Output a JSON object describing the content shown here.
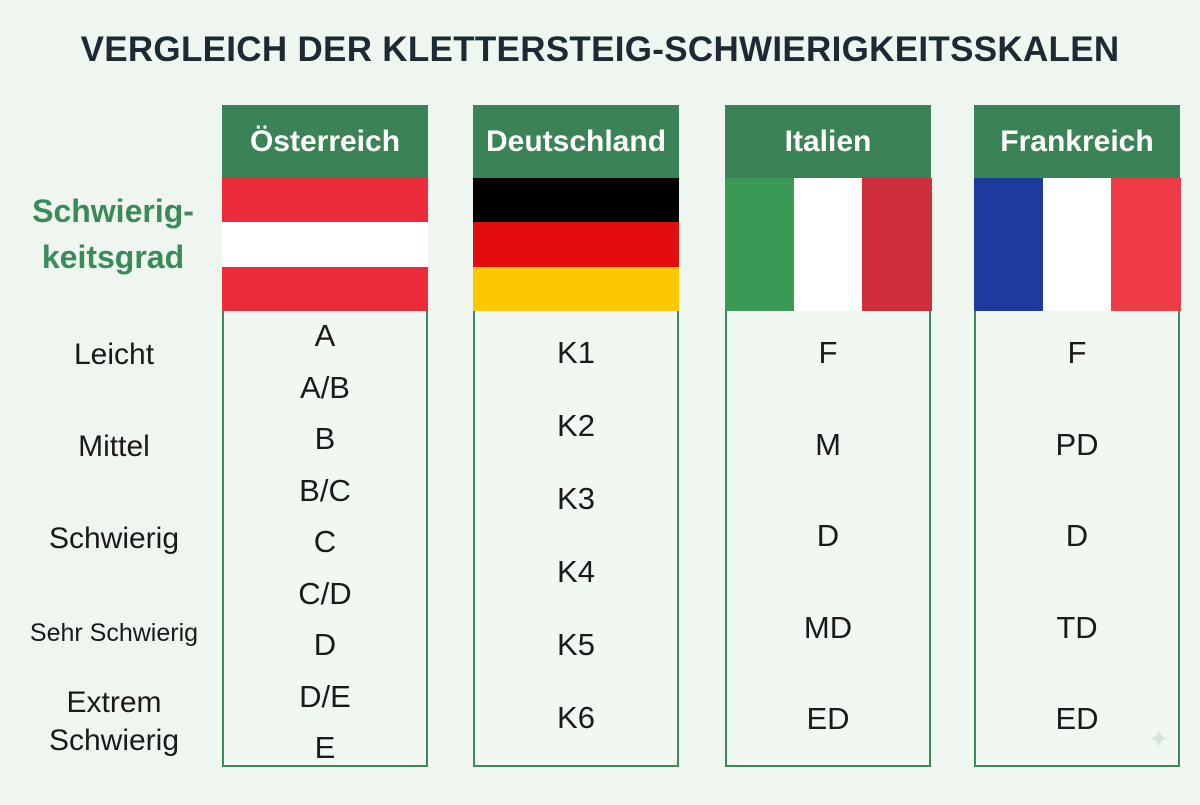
{
  "title": "VERGLEICH DER KLETTERSTEIG-SCHWIERIGKEITSSKALEN",
  "row_header": {
    "line1": "Schwierig-",
    "line2": "keitsgrad"
  },
  "levels": [
    {
      "line1": "Leicht",
      "line2": ""
    },
    {
      "line1": "Mittel",
      "line2": ""
    },
    {
      "line1": "Schwierig",
      "line2": ""
    },
    {
      "line1": "Sehr Schwierig",
      "line2": ""
    },
    {
      "line1": "Extrem",
      "line2": "Schwierig"
    }
  ],
  "columns": [
    {
      "name": "Österreich",
      "flag": {
        "orientation": "horizontal",
        "colors": [
          "#ec2b3a",
          "#ffffff",
          "#ec2b3a"
        ]
      },
      "grades": [
        "A",
        "A/B",
        "B",
        "B/C",
        "C",
        "C/D",
        "D",
        "D/E",
        "E"
      ]
    },
    {
      "name": "Deutschland",
      "flag": {
        "orientation": "horizontal",
        "colors": [
          "#000000",
          "#e30d10",
          "#fcc800"
        ]
      },
      "grades": [
        "K1",
        "K2",
        "K3",
        "K4",
        "K5",
        "K6"
      ]
    },
    {
      "name": "Italien",
      "flag": {
        "orientation": "vertical",
        "colors": [
          "#3a9a55",
          "#ffffff",
          "#cf2f3a"
        ]
      },
      "grades": [
        "F",
        "M",
        "D",
        "MD",
        "ED"
      ]
    },
    {
      "name": "Frankreich",
      "flag": {
        "orientation": "vertical",
        "colors": [
          "#1e3a9e",
          "#ffffff",
          "#ee3a45"
        ]
      },
      "grades": [
        "F",
        "PD",
        "D",
        "TD",
        "ED"
      ]
    }
  ]
}
